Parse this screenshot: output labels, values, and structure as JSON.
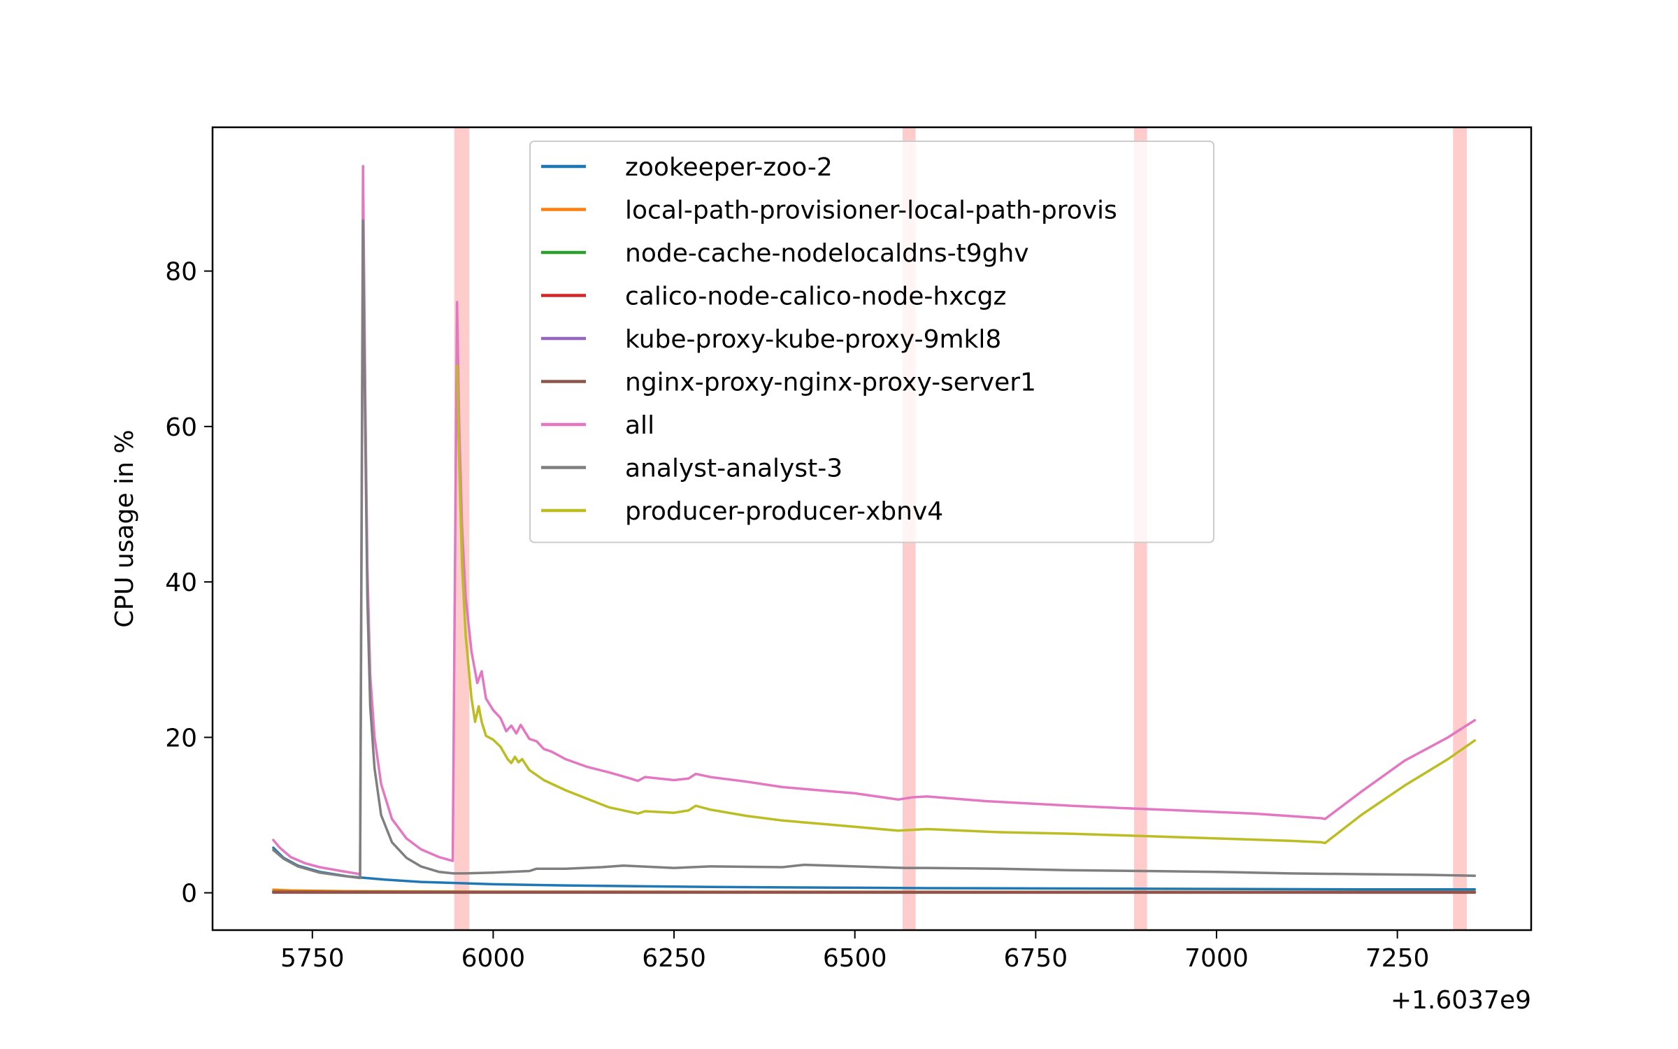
{
  "chart_data": {
    "type": "line",
    "title": "",
    "xlabel": "",
    "ylabel": "CPU usage in %",
    "x_offset_label": "+1.6037e9",
    "x_offset": 1603700000,
    "xlim": [
      5612,
      7435
    ],
    "ylim": [
      -4.8,
      98.5
    ],
    "x_ticks": [
      {
        "value": 5750,
        "label": "5750"
      },
      {
        "value": 6000,
        "label": "6000"
      },
      {
        "value": 6250,
        "label": "6250"
      },
      {
        "value": 6500,
        "label": "6500"
      },
      {
        "value": 6750,
        "label": "6750"
      },
      {
        "value": 7000,
        "label": "7000"
      },
      {
        "value": 7250,
        "label": "7250"
      }
    ],
    "y_ticks": [
      {
        "value": 0,
        "label": "0"
      },
      {
        "value": 20,
        "label": "20"
      },
      {
        "value": 40,
        "label": "40"
      },
      {
        "value": 60,
        "label": "60"
      },
      {
        "value": 80,
        "label": "80"
      }
    ],
    "grid": false,
    "legend_position": "top-center",
    "highlight_bands": [
      {
        "x0": 5946,
        "x1": 5967,
        "color": "#ffcccc"
      },
      {
        "x0": 6566,
        "x1": 6584,
        "color": "#ffcccc"
      },
      {
        "x0": 6886,
        "x1": 6904,
        "color": "#ffcccc"
      },
      {
        "x0": 7327,
        "x1": 7346,
        "color": "#ffcccc"
      }
    ],
    "series": [
      {
        "name": "zookeeper-zoo-2",
        "color": "#1f77b4",
        "points": [
          [
            5696,
            5.8
          ],
          [
            5710,
            4.5
          ],
          [
            5730,
            3.5
          ],
          [
            5760,
            2.7
          ],
          [
            5800,
            2.1
          ],
          [
            5850,
            1.7
          ],
          [
            5900,
            1.4
          ],
          [
            6000,
            1.1
          ],
          [
            6100,
            0.95
          ],
          [
            6200,
            0.85
          ],
          [
            6300,
            0.75
          ],
          [
            6400,
            0.7
          ],
          [
            6500,
            0.65
          ],
          [
            6600,
            0.6
          ],
          [
            6800,
            0.55
          ],
          [
            7000,
            0.5
          ],
          [
            7200,
            0.45
          ],
          [
            7357,
            0.45
          ]
        ]
      },
      {
        "name": "local-path-provisioner-local-path-provis",
        "color": "#ff7f0e",
        "points": [
          [
            5696,
            0.4
          ],
          [
            5720,
            0.3
          ],
          [
            5800,
            0.2
          ],
          [
            6000,
            0.15
          ],
          [
            7000,
            0.12
          ],
          [
            7357,
            0.12
          ]
        ]
      },
      {
        "name": "node-cache-nodelocaldns-t9ghv",
        "color": "#2ca02c",
        "points": [
          [
            5696,
            0.15
          ],
          [
            6000,
            0.1
          ],
          [
            7357,
            0.1
          ]
        ]
      },
      {
        "name": "calico-node-calico-node-hxcgz",
        "color": "#d62728",
        "points": [
          [
            5696,
            0.1
          ],
          [
            6000,
            0.08
          ],
          [
            7357,
            0.08
          ]
        ]
      },
      {
        "name": "kube-proxy-kube-proxy-9mkl8",
        "color": "#9467bd",
        "points": [
          [
            5696,
            0.05
          ],
          [
            7357,
            0.05
          ]
        ]
      },
      {
        "name": "nginx-proxy-nginx-proxy-server1",
        "color": "#8c564b",
        "points": [
          [
            5696,
            0.02
          ],
          [
            7357,
            0.02
          ]
        ]
      },
      {
        "name": "all",
        "color": "#e377c2",
        "points": [
          [
            5696,
            6.8
          ],
          [
            5705,
            5.8
          ],
          [
            5720,
            4.6
          ],
          [
            5740,
            3.8
          ],
          [
            5760,
            3.3
          ],
          [
            5790,
            2.8
          ],
          [
            5816,
            2.4
          ],
          [
            5820,
            93.5
          ],
          [
            5823,
            65
          ],
          [
            5826,
            42
          ],
          [
            5830,
            28
          ],
          [
            5836,
            20
          ],
          [
            5845,
            14
          ],
          [
            5860,
            9.5
          ],
          [
            5880,
            7
          ],
          [
            5900,
            5.6
          ],
          [
            5925,
            4.6
          ],
          [
            5944,
            4.1
          ],
          [
            5950,
            76
          ],
          [
            5953,
            60
          ],
          [
            5957,
            47
          ],
          [
            5962,
            38
          ],
          [
            5970,
            31
          ],
          [
            5978,
            27
          ],
          [
            5984,
            28.5
          ],
          [
            5990,
            25
          ],
          [
            6000,
            23.5
          ],
          [
            6010,
            22.5
          ],
          [
            6018,
            20.8
          ],
          [
            6025,
            21.5
          ],
          [
            6032,
            20.5
          ],
          [
            6038,
            21.6
          ],
          [
            6050,
            19.8
          ],
          [
            6060,
            19.5
          ],
          [
            6070,
            18.5
          ],
          [
            6080,
            18.2
          ],
          [
            6100,
            17.2
          ],
          [
            6130,
            16.2
          ],
          [
            6160,
            15.5
          ],
          [
            6190,
            14.7
          ],
          [
            6200,
            14.4
          ],
          [
            6210,
            14.9
          ],
          [
            6250,
            14.5
          ],
          [
            6270,
            14.7
          ],
          [
            6280,
            15.3
          ],
          [
            6300,
            14.9
          ],
          [
            6350,
            14.3
          ],
          [
            6400,
            13.6
          ],
          [
            6450,
            13.2
          ],
          [
            6500,
            12.8
          ],
          [
            6560,
            12.0
          ],
          [
            6580,
            12.3
          ],
          [
            6600,
            12.4
          ],
          [
            6640,
            12.1
          ],
          [
            6680,
            11.8
          ],
          [
            6740,
            11.5
          ],
          [
            6800,
            11.2
          ],
          [
            6870,
            10.9
          ],
          [
            6950,
            10.6
          ],
          [
            7050,
            10.2
          ],
          [
            7145,
            9.6
          ],
          [
            7150,
            9.5
          ],
          [
            7200,
            13.0
          ],
          [
            7260,
            17.0
          ],
          [
            7320,
            20.0
          ],
          [
            7357,
            22.2
          ]
        ]
      },
      {
        "name": "analyst-analyst-3",
        "color": "#7f7f7f",
        "points": [
          [
            5696,
            5.5
          ],
          [
            5710,
            4.4
          ],
          [
            5730,
            3.4
          ],
          [
            5760,
            2.6
          ],
          [
            5790,
            2.2
          ],
          [
            5816,
            1.9
          ],
          [
            5820,
            86.5
          ],
          [
            5823,
            60
          ],
          [
            5826,
            38
          ],
          [
            5830,
            24
          ],
          [
            5836,
            16
          ],
          [
            5845,
            10
          ],
          [
            5860,
            6.5
          ],
          [
            5880,
            4.5
          ],
          [
            5900,
            3.4
          ],
          [
            5925,
            2.7
          ],
          [
            5945,
            2.5
          ],
          [
            5960,
            2.5
          ],
          [
            6000,
            2.6
          ],
          [
            6050,
            2.8
          ],
          [
            6060,
            3.1
          ],
          [
            6100,
            3.1
          ],
          [
            6150,
            3.3
          ],
          [
            6180,
            3.5
          ],
          [
            6250,
            3.2
          ],
          [
            6300,
            3.4
          ],
          [
            6400,
            3.3
          ],
          [
            6430,
            3.6
          ],
          [
            6500,
            3.4
          ],
          [
            6570,
            3.2
          ],
          [
            6600,
            3.2
          ],
          [
            6700,
            3.1
          ],
          [
            6800,
            2.9
          ],
          [
            6900,
            2.8
          ],
          [
            7000,
            2.7
          ],
          [
            7100,
            2.5
          ],
          [
            7200,
            2.4
          ],
          [
            7300,
            2.3
          ],
          [
            7357,
            2.2
          ]
        ]
      },
      {
        "name": "producer-producer-xbnv4",
        "color": "#bcbd22",
        "points": [
          [
            5950,
            67.8
          ],
          [
            5953,
            55
          ],
          [
            5957,
            42
          ],
          [
            5962,
            33
          ],
          [
            5970,
            25
          ],
          [
            5975,
            22
          ],
          [
            5980,
            24
          ],
          [
            5984,
            22
          ],
          [
            5990,
            20.2
          ],
          [
            6000,
            19.7
          ],
          [
            6010,
            18.8
          ],
          [
            6020,
            17.2
          ],
          [
            6025,
            16.7
          ],
          [
            6030,
            17.5
          ],
          [
            6035,
            16.8
          ],
          [
            6040,
            17.2
          ],
          [
            6050,
            15.8
          ],
          [
            6070,
            14.5
          ],
          [
            6100,
            13.2
          ],
          [
            6130,
            12.1
          ],
          [
            6160,
            11.0
          ],
          [
            6200,
            10.2
          ],
          [
            6210,
            10.5
          ],
          [
            6250,
            10.3
          ],
          [
            6270,
            10.6
          ],
          [
            6280,
            11.2
          ],
          [
            6300,
            10.7
          ],
          [
            6350,
            9.9
          ],
          [
            6400,
            9.3
          ],
          [
            6450,
            8.9
          ],
          [
            6500,
            8.5
          ],
          [
            6560,
            8.0
          ],
          [
            6580,
            8.1
          ],
          [
            6600,
            8.2
          ],
          [
            6650,
            8.0
          ],
          [
            6700,
            7.8
          ],
          [
            6800,
            7.6
          ],
          [
            6900,
            7.3
          ],
          [
            7000,
            7.0
          ],
          [
            7100,
            6.7
          ],
          [
            7145,
            6.5
          ],
          [
            7150,
            6.4
          ],
          [
            7200,
            10.0
          ],
          [
            7260,
            13.8
          ],
          [
            7320,
            17.2
          ],
          [
            7357,
            19.6
          ]
        ]
      }
    ]
  }
}
